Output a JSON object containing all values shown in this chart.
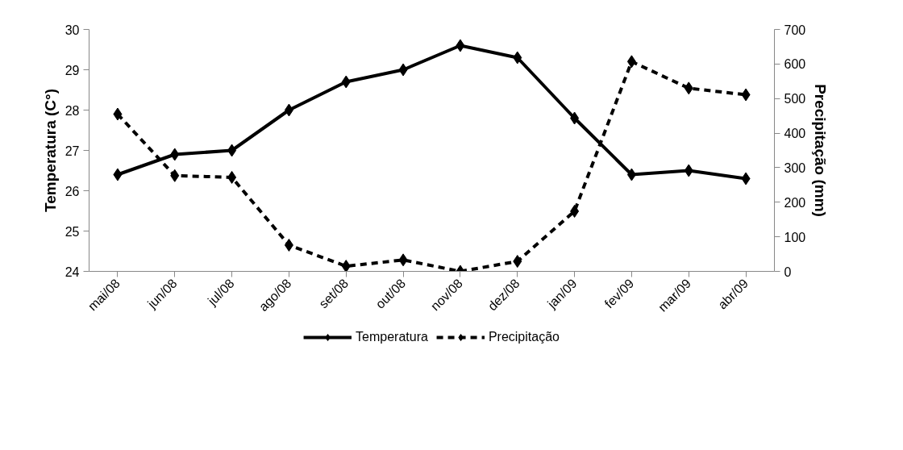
{
  "chart_data": {
    "type": "line",
    "ylabel": "Temperatura (C°)",
    "y2label": "Precipitação (mm)",
    "categories": [
      "mai/08",
      "jun/08",
      "jul/08",
      "ago/08",
      "set/08",
      "out/08",
      "nov/08",
      "dez/08",
      "jan/09",
      "fev/09",
      "mar/09",
      "abr/09"
    ],
    "ylim": [
      24,
      30
    ],
    "yticks": [
      24,
      25,
      26,
      27,
      28,
      29,
      30
    ],
    "y2lim": [
      0,
      700
    ],
    "y2ticks": [
      0,
      100,
      200,
      300,
      400,
      500,
      600,
      700
    ],
    "series": [
      {
        "name": "Temperatura",
        "color": "#000000",
        "line_style": "solid",
        "values": [
          26.4,
          26.9,
          27.0,
          28.0,
          28.7,
          29.0,
          29.6,
          29.3,
          27.8,
          26.4,
          26.5,
          26.3
        ]
      },
      {
        "name": "Precipitação",
        "color": "#000000",
        "line_style": "dashed",
        "axis": "y2",
        "values": [
          455,
          277,
          272,
          76,
          15,
          33,
          0,
          29,
          174,
          607,
          530,
          511
        ]
      }
    ],
    "marker": "diamond",
    "legend": "bottom",
    "grid": false
  }
}
